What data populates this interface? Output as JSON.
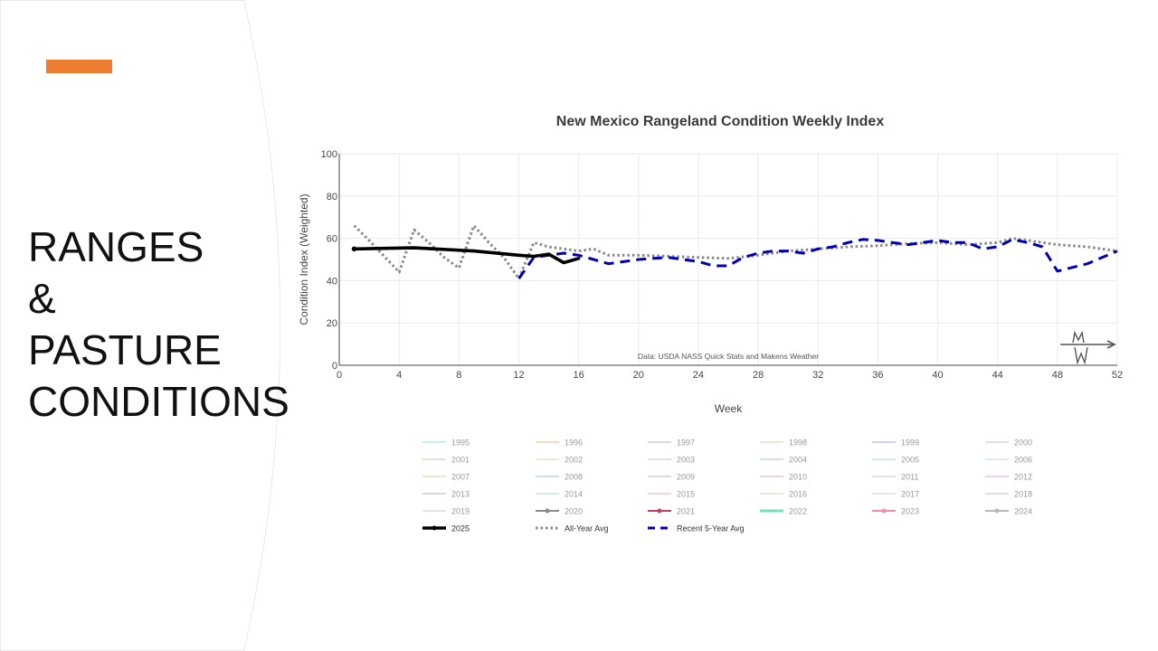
{
  "slide": {
    "title_lines": [
      "RANGES",
      "&",
      "PASTURE",
      "CONDITIONS"
    ],
    "accent_color": "#ed7d31"
  },
  "chart_data": {
    "type": "line",
    "title": "New Mexico Rangeland Condition Weekly Index",
    "xlabel": "Week",
    "ylabel": "Condition Index (Weighted)",
    "xlim": [
      0,
      52
    ],
    "ylim": [
      0,
      100
    ],
    "xticks": [
      0,
      4,
      8,
      12,
      16,
      20,
      24,
      28,
      32,
      36,
      40,
      44,
      48,
      52
    ],
    "yticks": [
      0,
      20,
      40,
      60,
      80,
      100
    ],
    "grid": true,
    "source_note": "Data: USDA NASS Quick Stats and Makens Weather",
    "logo_text": "Makens Weather",
    "series": [
      {
        "name": "2025",
        "color": "#000000",
        "style": "solid",
        "points": [
          [
            1,
            55
          ],
          [
            5,
            55.5
          ],
          [
            9,
            54
          ],
          [
            12,
            52
          ],
          [
            13,
            51.5
          ],
          [
            14,
            52.5
          ],
          [
            15,
            48.5
          ],
          [
            16,
            50.5
          ]
        ]
      },
      {
        "name": "All-Year Avg",
        "color": "#888888",
        "style": "dotted",
        "points": [
          [
            1,
            66
          ],
          [
            2,
            59
          ],
          [
            4,
            44
          ],
          [
            5,
            64
          ],
          [
            6,
            58
          ],
          [
            7,
            51
          ],
          [
            8,
            46
          ],
          [
            9,
            66
          ],
          [
            10,
            58
          ],
          [
            11,
            51
          ],
          [
            12,
            41
          ],
          [
            13,
            58
          ],
          [
            14,
            56
          ],
          [
            15,
            55
          ],
          [
            16,
            54
          ],
          [
            17,
            55
          ],
          [
            18,
            52
          ],
          [
            20,
            52
          ],
          [
            22,
            51.5
          ],
          [
            24,
            51
          ],
          [
            26,
            50.5
          ],
          [
            28,
            52
          ],
          [
            30,
            54
          ],
          [
            32,
            55
          ],
          [
            34,
            56
          ],
          [
            36,
            56.5
          ],
          [
            38,
            57.5
          ],
          [
            40,
            58
          ],
          [
            42,
            57
          ],
          [
            44,
            58
          ],
          [
            45,
            60
          ],
          [
            46,
            59
          ],
          [
            48,
            57
          ],
          [
            50,
            56
          ],
          [
            52,
            54
          ]
        ]
      },
      {
        "name": "Recent 5-Year Avg",
        "color": "#0000b3",
        "style": "dashed",
        "points": [
          [
            12,
            41
          ],
          [
            13,
            51
          ],
          [
            14,
            52
          ],
          [
            15,
            53
          ],
          [
            16,
            52
          ],
          [
            17,
            50
          ],
          [
            18,
            48
          ],
          [
            20,
            50
          ],
          [
            22,
            51
          ],
          [
            24,
            49
          ],
          [
            25,
            47
          ],
          [
            26,
            47
          ],
          [
            27,
            51
          ],
          [
            28,
            53
          ],
          [
            29,
            54
          ],
          [
            30,
            54
          ],
          [
            31,
            53
          ],
          [
            32,
            55
          ],
          [
            33,
            56
          ],
          [
            34,
            58
          ],
          [
            35,
            59.5
          ],
          [
            36,
            59
          ],
          [
            37,
            58
          ],
          [
            38,
            57
          ],
          [
            39,
            58
          ],
          [
            40,
            59
          ],
          [
            41,
            58
          ],
          [
            42,
            58
          ],
          [
            43,
            55
          ],
          [
            44,
            56
          ],
          [
            45,
            59.5
          ],
          [
            46,
            58
          ],
          [
            47,
            56
          ],
          [
            48,
            44.5
          ],
          [
            50,
            48
          ],
          [
            52,
            54
          ]
        ]
      }
    ],
    "legend": [
      {
        "label": "1995",
        "color": "#a8e6e6",
        "style": "faint"
      },
      {
        "label": "1996",
        "color": "#e8c89a",
        "style": "faint"
      },
      {
        "label": "1997",
        "color": "#c8c0d8",
        "style": "faint"
      },
      {
        "label": "1998",
        "color": "#e6d8c0",
        "style": "faint"
      },
      {
        "label": "1999",
        "color": "#b8b8e0",
        "style": "faint"
      },
      {
        "label": "2000",
        "color": "#c0d8c0",
        "style": "faint"
      },
      {
        "label": "2001",
        "color": "#e0c8b8",
        "style": "faint"
      },
      {
        "label": "2002",
        "color": "#d8e0b8",
        "style": "faint"
      },
      {
        "label": "2003",
        "color": "#d8c8e0",
        "style": "faint"
      },
      {
        "label": "2004",
        "color": "#b8d8b8",
        "style": "faint"
      },
      {
        "label": "2005",
        "color": "#b8e0d8",
        "style": "faint"
      },
      {
        "label": "2006",
        "color": "#c8e0e0",
        "style": "faint"
      },
      {
        "label": "2007",
        "color": "#e8d0b0",
        "style": "faint"
      },
      {
        "label": "2008",
        "color": "#b0c8d8",
        "style": "faint"
      },
      {
        "label": "2009",
        "color": "#d0c0c8",
        "style": "faint"
      },
      {
        "label": "2010",
        "color": "#e0b8c8",
        "style": "faint"
      },
      {
        "label": "2011",
        "color": "#e0d0c0",
        "style": "faint"
      },
      {
        "label": "2012",
        "color": "#e8b8d0",
        "style": "faint"
      },
      {
        "label": "2013",
        "color": "#c8c0b8",
        "style": "faint"
      },
      {
        "label": "2014",
        "color": "#b8e0d0",
        "style": "faint"
      },
      {
        "label": "2015",
        "color": "#e0c0c0",
        "style": "faint"
      },
      {
        "label": "2016",
        "color": "#d8e0c8",
        "style": "faint"
      },
      {
        "label": "2017",
        "color": "#e0d8d0",
        "style": "faint"
      },
      {
        "label": "2018",
        "color": "#c8d0c0",
        "style": "faint"
      },
      {
        "label": "2019",
        "color": "#c8d8e0",
        "style": "faint"
      },
      {
        "label": "2020",
        "color": "#8a8a8a",
        "style": "marker"
      },
      {
        "label": "2021",
        "color": "#c04060",
        "style": "marker"
      },
      {
        "label": "2022",
        "color": "#70e0c0",
        "style": "thick"
      },
      {
        "label": "2023",
        "color": "#f08cb0",
        "style": "marker"
      },
      {
        "label": "2024",
        "color": "#b8b8b8",
        "style": "marker"
      },
      {
        "label": "2025",
        "color": "#000000",
        "style": "solid"
      },
      {
        "label": "All-Year Avg",
        "color": "#888888",
        "style": "dotted"
      },
      {
        "label": "Recent 5-Year Avg",
        "color": "#0000b3",
        "style": "dashed"
      }
    ]
  }
}
